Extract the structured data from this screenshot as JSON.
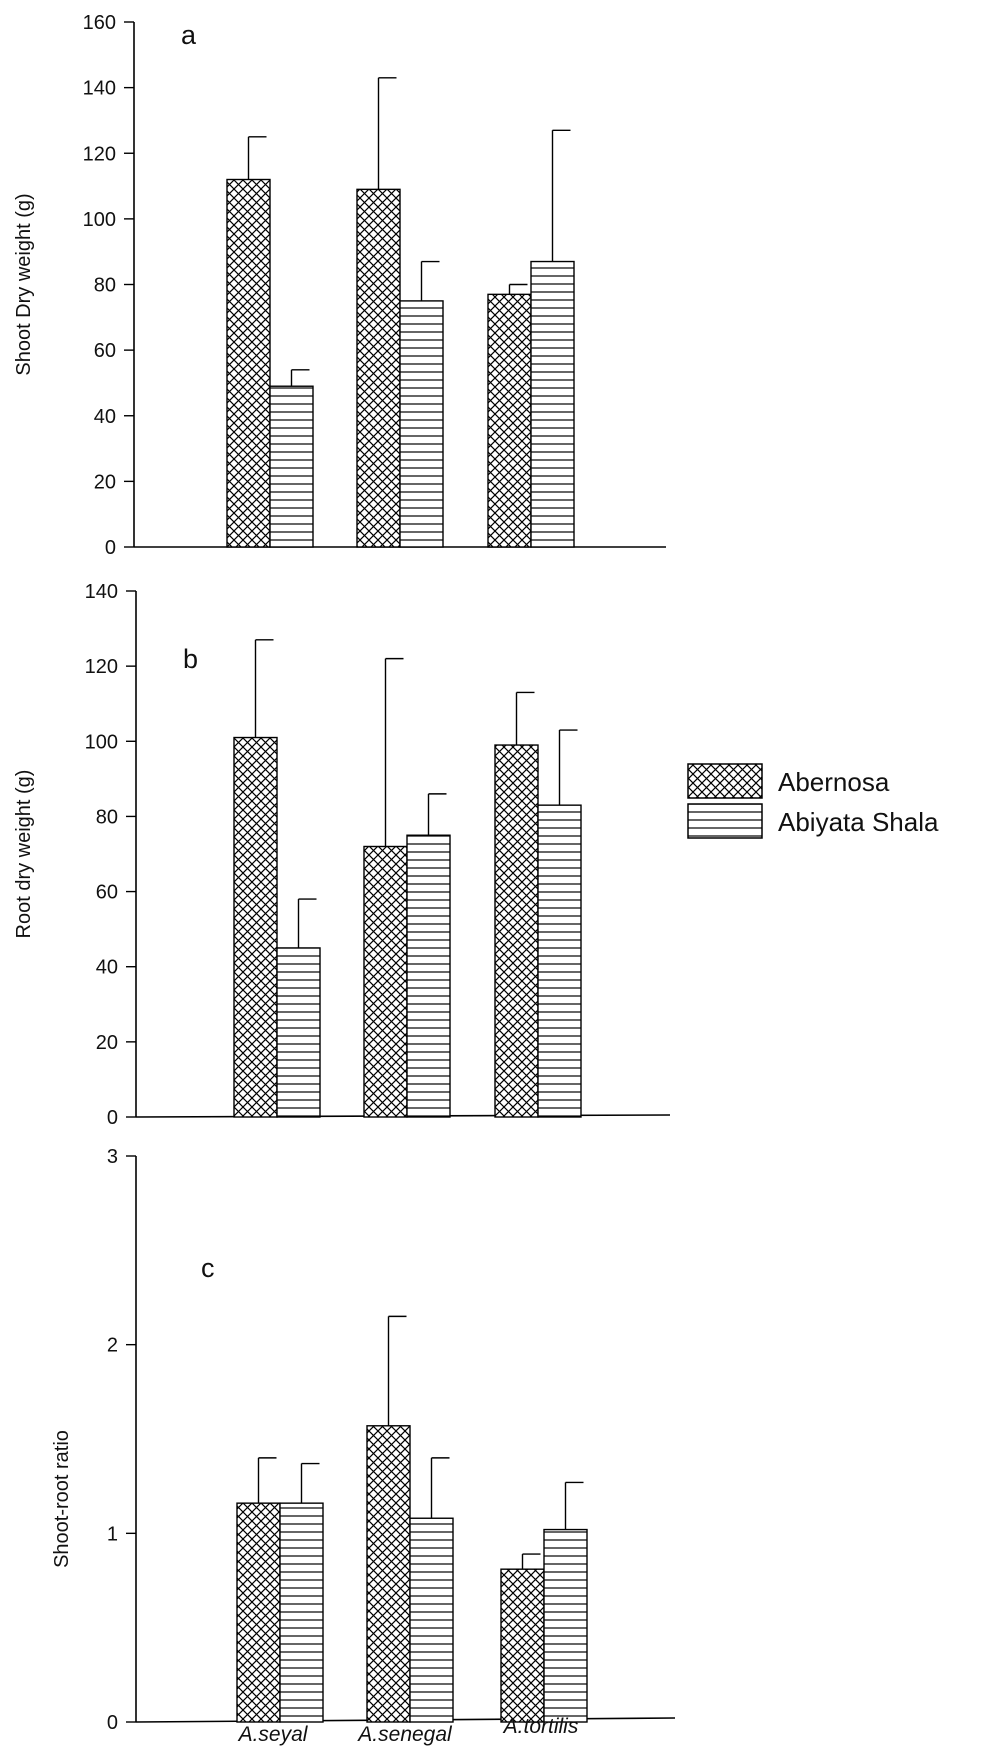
{
  "series_styles": {
    "Abernosa": {
      "pattern": "crosshatch",
      "color": "#000000"
    },
    "Abiyata Shala": {
      "pattern": "horizontal",
      "color": "#000000"
    }
  },
  "legend": {
    "placement": "right",
    "items": [
      "Abernosa",
      "Abiyata Shala"
    ]
  },
  "chart_data": [
    {
      "type": "bar",
      "panel_label": "a",
      "categories": [
        "A.seyal",
        "A.senegal",
        "A.tortilis"
      ],
      "ylabel": "Shoot Dry weight (g)",
      "ylim": [
        0,
        160
      ],
      "yticks": [
        0,
        20,
        40,
        60,
        80,
        100,
        120,
        140,
        160
      ],
      "show_category_labels": false,
      "series": [
        {
          "name": "Abernosa",
          "values": [
            112,
            109,
            77
          ],
          "errors": [
            13,
            34,
            3
          ]
        },
        {
          "name": "Abiyata Shala",
          "values": [
            49,
            75,
            87
          ],
          "errors": [
            5,
            12,
            40
          ]
        }
      ]
    },
    {
      "type": "bar",
      "panel_label": "b",
      "categories": [
        "A.seyal",
        "A.senegal",
        "A.tortilis"
      ],
      "ylabel": "Root dry weight (g)",
      "ylim": [
        0,
        140
      ],
      "yticks": [
        0,
        20,
        40,
        60,
        80,
        100,
        120,
        140
      ],
      "show_category_labels": false,
      "series": [
        {
          "name": "Abernosa",
          "values": [
            101,
            72,
            99
          ],
          "errors": [
            26,
            50,
            14
          ]
        },
        {
          "name": "Abiyata Shala",
          "values": [
            45,
            75,
            83
          ],
          "errors": [
            13,
            11,
            20
          ]
        }
      ]
    },
    {
      "type": "bar",
      "panel_label": "c",
      "categories": [
        "A.seyal",
        "A.senegal",
        "A.tortilis"
      ],
      "ylabel": "Shoot-root ratio",
      "ylim": [
        0,
        3
      ],
      "yticks": [
        0,
        1,
        2,
        3
      ],
      "show_category_labels": true,
      "series": [
        {
          "name": "Abernosa",
          "values": [
            1.16,
            1.57,
            0.81
          ],
          "errors": [
            0.24,
            0.58,
            0.08
          ]
        },
        {
          "name": "Abiyata Shala",
          "values": [
            1.16,
            1.08,
            1.02
          ],
          "errors": [
            0.21,
            0.32,
            0.25
          ]
        }
      ]
    }
  ]
}
